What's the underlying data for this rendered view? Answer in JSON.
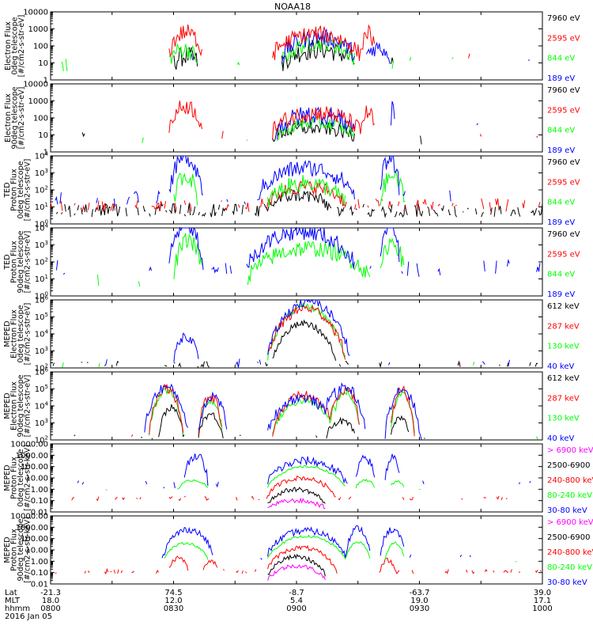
{
  "title": "NOAA18",
  "colors": {
    "black": "#000000",
    "red": "#ff0000",
    "green": "#00ff00",
    "blue": "#0000ff",
    "magenta": "#ff00ff"
  },
  "footer": {
    "rows": [
      {
        "label": "Lat",
        "values": [
          "-21.3",
          "74.5",
          "-8.7",
          "-63.7",
          "39.0"
        ]
      },
      {
        "label": "MLT",
        "values": [
          "18.0",
          "12.0",
          "5.4",
          "19.0",
          "17.1"
        ]
      },
      {
        "label": "hhmm",
        "values": [
          "0800",
          "0830",
          "0900",
          "0930",
          "1000"
        ]
      }
    ],
    "date": "2016 Jan 05"
  },
  "chart_data": [
    {
      "type": "line",
      "ylabel": [
        "Electron Flux",
        "0deg telescope",
        "[#/cm2-s-str-eV]"
      ],
      "log": true,
      "ytick_labels": [
        "1",
        "10",
        "100",
        "1000",
        "10000"
      ],
      "ylim_exp": [
        0,
        4
      ],
      "legend": [
        {
          "text": "7960 eV",
          "color": "black"
        },
        {
          "text": "2595 eV",
          "color": "red"
        },
        {
          "text": "844 eV",
          "color": "green"
        },
        {
          "text": "189 eV",
          "color": "blue"
        }
      ],
      "series": [
        {
          "color": "black",
          "base": 0.9,
          "noise": 0.6,
          "sparse": 0.1,
          "events": [
            [
              0.47,
              0.62,
              0.9
            ],
            [
              0.25,
              0.3,
              0.5
            ]
          ]
        },
        {
          "color": "green",
          "base": 1.0,
          "noise": 0.5,
          "sparse": 0.15,
          "events": [
            [
              0.47,
              0.62,
              1.2
            ],
            [
              0.24,
              0.3,
              0.8
            ]
          ]
        },
        {
          "color": "blue",
          "base": 1.3,
          "noise": 0.5,
          "sparse": 0.1,
          "events": [
            [
              0.47,
              0.62,
              1.2
            ],
            [
              0.64,
              0.69,
              0.6
            ]
          ]
        },
        {
          "color": "red",
          "base": 1.3,
          "noise": 0.5,
          "sparse": 0.12,
          "events": [
            [
              0.45,
              0.63,
              1.4
            ],
            [
              0.24,
              0.31,
              1.5
            ],
            [
              0.63,
              0.66,
              1.5
            ]
          ]
        }
      ]
    },
    {
      "type": "line",
      "ylabel": [
        "Electron Flux",
        "90deg telescope",
        "[#/cm2-s-str-eV]"
      ],
      "log": true,
      "ytick_labels": [
        "1",
        "10",
        "100",
        "1000",
        "10000"
      ],
      "ylim_exp": [
        0,
        4
      ],
      "legend": [
        {
          "text": "7960 eV",
          "color": "black"
        },
        {
          "text": "2595 eV",
          "color": "red"
        },
        {
          "text": "844 eV",
          "color": "green"
        },
        {
          "text": "189 eV",
          "color": "blue"
        }
      ],
      "series": [
        {
          "color": "black",
          "base": 0.8,
          "noise": 0.4,
          "sparse": 0.08,
          "events": [
            [
              0.45,
              0.62,
              0.6
            ]
          ]
        },
        {
          "color": "green",
          "base": 0.9,
          "noise": 0.4,
          "sparse": 0.08,
          "events": [
            [
              0.46,
              0.62,
              0.8
            ]
          ]
        },
        {
          "color": "blue",
          "base": 1.2,
          "noise": 0.6,
          "sparse": 0.07,
          "events": [
            [
              0.46,
              0.62,
              1.0
            ],
            [
              0.69,
              0.7,
              1.2
            ]
          ]
        },
        {
          "color": "red",
          "base": 1.1,
          "noise": 0.5,
          "sparse": 0.08,
          "events": [
            [
              0.45,
              0.63,
              1.2
            ],
            [
              0.24,
              0.31,
              1.6
            ],
            [
              0.63,
              0.66,
              1.2
            ]
          ]
        }
      ]
    },
    {
      "type": "line",
      "ylabel": [
        "TED",
        "Proton Flux",
        "0deg telescope",
        "[#/cm2-s-str-eV]"
      ],
      "log": true,
      "ytick_labels": [
        "10^0",
        "10^1",
        "10^2",
        "10^3",
        "10^4"
      ],
      "ylim_exp": [
        0,
        4
      ],
      "legend": [
        {
          "text": "7960 eV",
          "color": "black"
        },
        {
          "text": "2595 eV",
          "color": "red"
        },
        {
          "text": "844 eV",
          "color": "green"
        },
        {
          "text": "189 eV",
          "color": "blue"
        }
      ],
      "series": [
        {
          "color": "black",
          "base": 0.8,
          "noise": 0.4,
          "sparse": 0.6,
          "events": [
            [
              0.44,
              0.57,
              0.9
            ]
          ]
        },
        {
          "color": "red",
          "base": 1.1,
          "noise": 0.4,
          "sparse": 0.5,
          "events": [
            [
              0.44,
              0.6,
              1.1
            ]
          ]
        },
        {
          "color": "green",
          "base": 1.1,
          "noise": 0.5,
          "sparse": 0.05,
          "events": [
            [
              0.44,
              0.6,
              1.3
            ],
            [
              0.25,
              0.3,
              1.8
            ],
            [
              0.67,
              0.72,
              1.7
            ]
          ]
        },
        {
          "color": "blue",
          "base": 1.5,
          "noise": 0.5,
          "sparse": 0.2,
          "events": [
            [
              0.42,
              0.62,
              1.8
            ],
            [
              0.24,
              0.31,
              2.4
            ],
            [
              0.67,
              0.71,
              2.4
            ]
          ]
        }
      ]
    },
    {
      "type": "line",
      "ylabel": [
        "TED",
        "Proton Flux",
        "90deg telescope",
        "[#/cm2-s-str-eV]"
      ],
      "log": true,
      "ytick_labels": [
        "10^0",
        "10^1",
        "10^2",
        "10^3",
        "10^4"
      ],
      "ylim_exp": [
        0,
        4
      ],
      "legend": [
        {
          "text": "7960 eV",
          "color": "black"
        },
        {
          "text": "2595 eV",
          "color": "red"
        },
        {
          "text": "844 eV",
          "color": "green"
        },
        {
          "text": "189 eV",
          "color": "blue"
        }
      ],
      "series": [
        {
          "color": "green",
          "base": 0.9,
          "noise": 0.5,
          "sparse": 0.1,
          "events": [
            [
              0.4,
              0.65,
              1.9
            ],
            [
              0.25,
              0.31,
              2.4
            ],
            [
              0.67,
              0.72,
              2.3
            ]
          ]
        },
        {
          "color": "blue",
          "base": 1.6,
          "noise": 0.5,
          "sparse": 0.3,
          "events": [
            [
              0.4,
              0.62,
              2.2
            ],
            [
              0.24,
              0.31,
              2.6
            ],
            [
              0.67,
              0.71,
              2.6
            ]
          ]
        }
      ]
    },
    {
      "type": "line",
      "ylabel": [
        "MEPED",
        "Electron Flux",
        "0deg telescope",
        "[#/cm2-s-str-eV]"
      ],
      "log": true,
      "ytick_labels": [
        "10^2",
        "10^3",
        "10^4",
        "10^5",
        "10^6"
      ],
      "ylim_exp": [
        2,
        6
      ],
      "legend": [
        {
          "text": "612 keV",
          "color": "black"
        },
        {
          "text": "287 keV",
          "color": "red"
        },
        {
          "text": "130 keV",
          "color": "green"
        },
        {
          "text": "40 keV",
          "color": "blue"
        }
      ],
      "series": [
        {
          "color": "black",
          "base": 2.2,
          "noise": 0.2,
          "sparse": 0.3,
          "events": [
            [
              0.45,
              0.58,
              2.4
            ]
          ]
        },
        {
          "color": "green",
          "base": 2.2,
          "noise": 0.2,
          "sparse": 0.1,
          "events": [
            [
              0.44,
              0.6,
              3.4
            ]
          ]
        },
        {
          "color": "red",
          "base": 2.3,
          "noise": 0.3,
          "sparse": 0.1,
          "events": [
            [
              0.44,
              0.6,
              3.2
            ]
          ]
        },
        {
          "color": "blue",
          "base": 2.3,
          "noise": 0.3,
          "sparse": 0.1,
          "events": [
            [
              0.44,
              0.61,
              3.6
            ],
            [
              0.25,
              0.3,
              1.6
            ]
          ]
        }
      ]
    },
    {
      "type": "line",
      "ylabel": [
        "MEPED",
        "Electron Flux",
        "90deg telescope",
        "[#/cm2-s-str-eV]"
      ],
      "log": true,
      "ytick_labels": [
        "10^2",
        "10^3",
        "10^4",
        "10^5",
        "10^6"
      ],
      "ylim_exp": [
        2,
        6
      ],
      "legend": [
        {
          "text": "612 keV",
          "color": "black"
        },
        {
          "text": "287 keV",
          "color": "red"
        },
        {
          "text": "130 keV",
          "color": "green"
        },
        {
          "text": "40 keV",
          "color": "blue"
        }
      ],
      "series": [
        {
          "color": "black",
          "base": 2.1,
          "noise": 0.2,
          "sparse": 0.2,
          "events": [
            [
              0.22,
              0.27,
              1.8
            ],
            [
              0.3,
              0.35,
              1.4
            ],
            [
              0.56,
              0.62,
              1.0
            ],
            [
              0.69,
              0.73,
              1.2
            ]
          ]
        },
        {
          "color": "green",
          "base": 2.1,
          "noise": 0.2,
          "sparse": 0.1,
          "events": [
            [
              0.2,
              0.27,
              2.8
            ],
            [
              0.3,
              0.35,
              2.2
            ],
            [
              0.45,
              0.58,
              2.2
            ],
            [
              0.57,
              0.63,
              2.7
            ],
            [
              0.69,
              0.74,
              2.6
            ]
          ]
        },
        {
          "color": "red",
          "base": 2.2,
          "noise": 0.3,
          "sparse": 0.1,
          "events": [
            [
              0.2,
              0.27,
              2.9
            ],
            [
              0.3,
              0.35,
              2.3
            ],
            [
              0.45,
              0.58,
              2.4
            ],
            [
              0.57,
              0.63,
              2.8
            ],
            [
              0.69,
              0.74,
              2.7
            ]
          ]
        },
        {
          "color": "blue",
          "base": 2.2,
          "noise": 0.3,
          "sparse": 0.1,
          "events": [
            [
              0.19,
              0.28,
              2.9
            ],
            [
              0.3,
              0.36,
              2.4
            ],
            [
              0.44,
              0.58,
              2.3
            ],
            [
              0.56,
              0.64,
              2.9
            ],
            [
              0.68,
              0.75,
              2.8
            ]
          ]
        }
      ]
    },
    {
      "type": "line",
      "ylabel": [
        "MEPED",
        "Proton Flux",
        "0deg telescope",
        "[#/cm2-s-str-keV]"
      ],
      "log": true,
      "ytick_labels": [
        "0.01",
        "0.10",
        "1.00",
        "10.00",
        "100.00",
        "1000.00",
        "10000.00"
      ],
      "ylim_exp": [
        -2,
        4
      ],
      "legend": [
        {
          "text": "> 6900 keV",
          "color": "magenta"
        },
        {
          "text": "2500-6900",
          "color": "black"
        },
        {
          "text": "240-800 keV",
          "color": "red"
        },
        {
          "text": "80-240 keV",
          "color": "green"
        },
        {
          "text": "30-80 keV",
          "color": "blue"
        }
      ],
      "series": [
        {
          "color": "magenta",
          "base": -1.8,
          "noise": 0.2,
          "sparse": 0.0,
          "events": [
            [
              0.44,
              0.56,
              0.8
            ]
          ]
        },
        {
          "color": "black",
          "base": -1.5,
          "noise": 0.2,
          "sparse": 0.0,
          "events": [
            [
              0.44,
              0.56,
              1.5
            ]
          ]
        },
        {
          "color": "red",
          "base": -0.8,
          "noise": 0.2,
          "sparse": 0.4,
          "events": [
            [
              0.44,
              0.58,
              1.8
            ]
          ]
        },
        {
          "color": "green",
          "base": 0.0,
          "noise": 0.1,
          "sparse": 0.1,
          "events": [
            [
              0.44,
              0.6,
              2.0
            ],
            [
              0.26,
              0.32,
              0.8
            ],
            [
              0.62,
              0.66,
              0.8
            ],
            [
              0.69,
              0.72,
              0.7
            ]
          ]
        },
        {
          "color": "blue",
          "base": 0.5,
          "noise": 0.4,
          "sparse": 0.2,
          "events": [
            [
              0.44,
              0.6,
              2.0
            ],
            [
              0.27,
              0.32,
              2.5
            ],
            [
              0.62,
              0.66,
              2.2
            ],
            [
              0.68,
              0.71,
              2.3
            ]
          ]
        }
      ]
    },
    {
      "type": "line",
      "ylabel": [
        "MEPED",
        "Proton Flux",
        "90deg telescope",
        "[#/cm2-s-str-keV]"
      ],
      "log": true,
      "ytick_labels": [
        "0.01",
        "0.10",
        "1.00",
        "10.00",
        "100.00",
        "1000.00",
        "10000.00"
      ],
      "ylim_exp": [
        -2,
        4
      ],
      "legend": [
        {
          "text": "> 6900 keV",
          "color": "magenta"
        },
        {
          "text": "2500-6900",
          "color": "black"
        },
        {
          "text": "240-800 keV",
          "color": "red"
        },
        {
          "text": "80-240 keV",
          "color": "green"
        },
        {
          "text": "30-80 keV",
          "color": "blue"
        }
      ],
      "series": [
        {
          "color": "magenta",
          "base": -1.8,
          "noise": 0.2,
          "sparse": 0.0,
          "events": [
            [
              0.44,
              0.56,
              1.4
            ]
          ]
        },
        {
          "color": "black",
          "base": -1.5,
          "noise": 0.2,
          "sparse": 0.0,
          "events": [
            [
              0.44,
              0.56,
              1.9
            ]
          ]
        },
        {
          "color": "red",
          "base": -0.9,
          "noise": 0.2,
          "sparse": 0.4,
          "events": [
            [
              0.44,
              0.58,
              2.1
            ],
            [
              0.24,
              0.28,
              1.2
            ],
            [
              0.31,
              0.34,
              1.0
            ],
            [
              0.67,
              0.7,
              1.0
            ]
          ]
        },
        {
          "color": "green",
          "base": 0.0,
          "noise": 0.1,
          "sparse": 0.1,
          "events": [
            [
              0.44,
              0.6,
              2.2
            ],
            [
              0.23,
              0.32,
              1.6
            ],
            [
              0.6,
              0.65,
              1.7
            ],
            [
              0.68,
              0.72,
              1.6
            ]
          ]
        },
        {
          "color": "blue",
          "base": 0.4,
          "noise": 0.3,
          "sparse": 0.1,
          "events": [
            [
              0.44,
              0.6,
              2.3
            ],
            [
              0.23,
              0.33,
              2.4
            ],
            [
              0.6,
              0.65,
              2.5
            ],
            [
              0.67,
              0.72,
              2.4
            ]
          ]
        }
      ]
    }
  ]
}
